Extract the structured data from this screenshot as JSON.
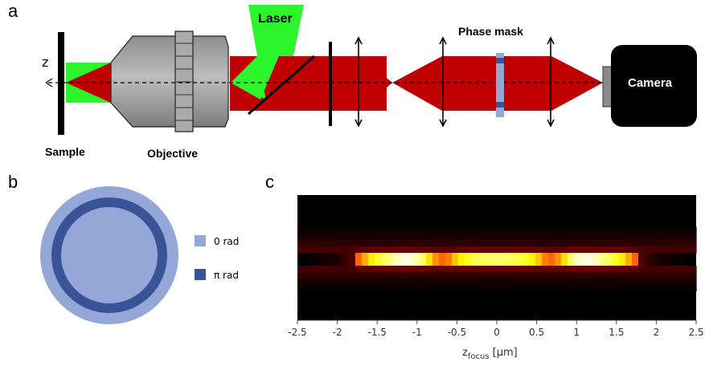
{
  "panels": {
    "a": "a",
    "b": "b",
    "c": "c"
  },
  "setup": {
    "z_axis": "z",
    "laser": "Laser",
    "sample": "Sample",
    "objective": "Objective",
    "phase_mask": "Phase mask",
    "camera": "Camera"
  },
  "mask": {
    "legend": [
      {
        "label": "0 rad",
        "color": "#94a7d6"
      },
      {
        "label": "π rad",
        "color": "#3a5396"
      }
    ]
  },
  "colors": {
    "beam_red": "#c00000",
    "laser_green": "#2cf52c",
    "objective_gray": "#9e9e9e",
    "camera_black": "#000000"
  },
  "chart_data": {
    "type": "heatmap",
    "xlabel": "z",
    "xlabel_sub": "focus",
    "xlabel_unit": " [μm]",
    "xlim": [
      -2.5,
      2.5
    ],
    "xticks": [
      "-2.5",
      "-2",
      "-1.5",
      "-1",
      "-0.5",
      "0",
      "0.5",
      "1",
      "1.5",
      "2",
      "2.5"
    ],
    "xtick_values": [
      -2.5,
      -2,
      -1.5,
      -1,
      -0.5,
      0,
      0.5,
      1,
      1.5,
      2,
      2.5
    ],
    "colormap": "hot",
    "on_axis_intensity_x": [
      -2.5,
      -2.0,
      -1.8,
      -1.75,
      -1.6,
      -1.45,
      -1.3,
      -1.2,
      -1.1,
      -0.95,
      -0.8,
      -0.65,
      -0.5,
      -0.3,
      0,
      0.3,
      0.5,
      0.65,
      0.8,
      0.95,
      1.1,
      1.2,
      1.3,
      1.45,
      1.6,
      1.75,
      1.8,
      2.0,
      2.5
    ],
    "on_axis_intensity": [
      0.0,
      0.04,
      0.12,
      0.5,
      0.7,
      0.82,
      0.9,
      0.97,
      0.97,
      0.9,
      0.62,
      0.5,
      0.7,
      0.82,
      0.86,
      0.82,
      0.7,
      0.5,
      0.62,
      0.9,
      0.97,
      0.97,
      0.9,
      0.82,
      0.7,
      0.5,
      0.12,
      0.04,
      0.0
    ]
  }
}
